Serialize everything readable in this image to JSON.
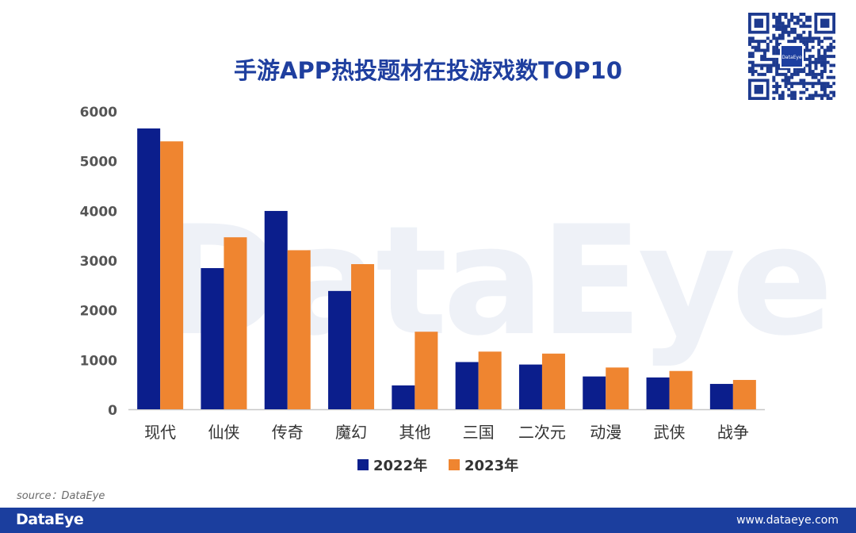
{
  "chart_data": {
    "type": "bar",
    "title": "手游APP热投题材在投游戏数TOP10",
    "categories": [
      "现代",
      "仙侠",
      "传奇",
      "魔幻",
      "其他",
      "三国",
      "二次元",
      "动漫",
      "武侠",
      "战争"
    ],
    "series": [
      {
        "name": "2022年",
        "color": "#0b1e8c",
        "values": [
          5650,
          2840,
          3990,
          2380,
          480,
          950,
          900,
          660,
          640,
          510
        ]
      },
      {
        "name": "2023年",
        "color": "#ef8530",
        "values": [
          5390,
          3460,
          3200,
          2920,
          1560,
          1160,
          1120,
          840,
          770,
          590
        ]
      }
    ],
    "ylim": [
      0,
      6000
    ],
    "yticks": [
      0,
      1000,
      2000,
      3000,
      4000,
      5000,
      6000
    ],
    "xlabel": "",
    "ylabel": "",
    "grid": false,
    "legend": "bottom"
  },
  "watermark": "DataEye",
  "qr_logo": "DataEye",
  "source": "source：DataEye",
  "footer": {
    "brand": "DataEye",
    "url": "www.dataeye.com"
  },
  "colors": {
    "axis": "#c8c8c8",
    "tick_text": "#555555",
    "cat_text": "#333333",
    "footer_bg": "#1b3e9e",
    "title": "#1f3f9f"
  }
}
